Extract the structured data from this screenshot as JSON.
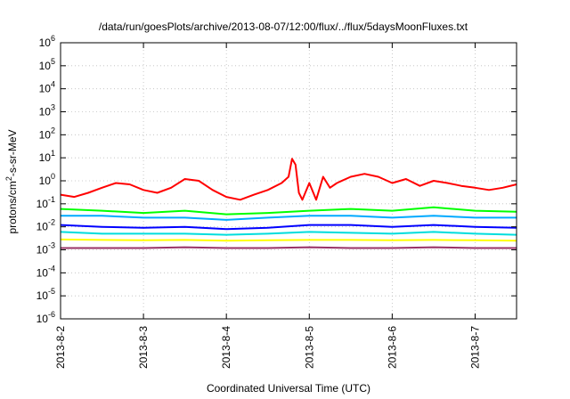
{
  "chart_data": {
    "type": "line",
    "title": "/data/run/goesPlots/archive/2013-08-07/12:00/flux/../flux/5daysMoonFluxes.txt",
    "xlabel": "Coordinated Universal Time (UTC)",
    "ylabel": {
      "base": "protons/cm",
      "sup": "2",
      "rest": "-s-sr-MeV"
    },
    "yscale": "log",
    "ylim": [
      1e-06,
      1000000.0
    ],
    "xlim": [
      "2013-08-02 00:00",
      "2013-08-07 12:00"
    ],
    "xticks": [
      "2013-8-2",
      "2013-8-3",
      "2013-8-4",
      "2013-8-5",
      "2013-8-6",
      "2013-8-7"
    ],
    "yticks": [
      {
        "base": "10",
        "exp": "-6",
        "value": 1e-06
      },
      {
        "base": "10",
        "exp": "-5",
        "value": 1e-05
      },
      {
        "base": "10",
        "exp": "-4",
        "value": 0.0001
      },
      {
        "base": "10",
        "exp": "-3",
        "value": 0.001
      },
      {
        "base": "10",
        "exp": "-2",
        "value": 0.01
      },
      {
        "base": "10",
        "exp": "-1",
        "value": 0.1
      },
      {
        "base": "10",
        "exp": "0",
        "value": 1.0
      },
      {
        "base": "10",
        "exp": "1",
        "value": 10.0
      },
      {
        "base": "10",
        "exp": "2",
        "value": 100.0
      },
      {
        "base": "10",
        "exp": "3",
        "value": 1000.0
      },
      {
        "base": "10",
        "exp": "4",
        "value": 10000.0
      },
      {
        "base": "10",
        "exp": "5",
        "value": 100000.0
      },
      {
        "base": "10",
        "exp": "6",
        "value": 1000000.0
      }
    ],
    "grid": true,
    "legend": "none",
    "series": [
      {
        "color": "#ff0000",
        "x": [
          "2013-08-02 00:00",
          "2013-08-02 04:00",
          "2013-08-02 08:00",
          "2013-08-02 12:00",
          "2013-08-02 16:00",
          "2013-08-02 20:00",
          "2013-08-03 00:00",
          "2013-08-03 04:00",
          "2013-08-03 08:00",
          "2013-08-03 12:00",
          "2013-08-03 16:00",
          "2013-08-03 20:00",
          "2013-08-04 00:00",
          "2013-08-04 04:00",
          "2013-08-04 08:00",
          "2013-08-04 12:00",
          "2013-08-04 16:00",
          "2013-08-04 18:00",
          "2013-08-04 19:00",
          "2013-08-04 20:00",
          "2013-08-04 21:00",
          "2013-08-04 22:00",
          "2013-08-05 00:00",
          "2013-08-05 02:00",
          "2013-08-05 04:00",
          "2013-08-05 06:00",
          "2013-08-05 08:00",
          "2013-08-05 12:00",
          "2013-08-05 16:00",
          "2013-08-05 20:00",
          "2013-08-06 00:00",
          "2013-08-06 04:00",
          "2013-08-06 08:00",
          "2013-08-06 12:00",
          "2013-08-06 16:00",
          "2013-08-06 20:00",
          "2013-08-07 00:00",
          "2013-08-07 04:00",
          "2013-08-07 08:00",
          "2013-08-07 12:00"
        ],
        "values": [
          0.25,
          0.2,
          0.3,
          0.5,
          0.8,
          0.7,
          0.4,
          0.3,
          0.5,
          1.2,
          1.0,
          0.4,
          0.2,
          0.15,
          0.25,
          0.4,
          0.8,
          1.5,
          9.0,
          5.0,
          0.3,
          0.15,
          0.8,
          0.15,
          1.5,
          0.5,
          0.8,
          1.5,
          2.0,
          1.5,
          0.8,
          1.2,
          0.6,
          1.0,
          0.8,
          0.6,
          0.5,
          0.4,
          0.5,
          0.7
        ]
      },
      {
        "color": "#00ff00",
        "x": [
          "2013-08-02 00:00",
          "2013-08-02 12:00",
          "2013-08-03 00:00",
          "2013-08-03 12:00",
          "2013-08-04 00:00",
          "2013-08-04 12:00",
          "2013-08-05 00:00",
          "2013-08-05 12:00",
          "2013-08-06 00:00",
          "2013-08-06 12:00",
          "2013-08-07 00:00",
          "2013-08-07 12:00"
        ],
        "values": [
          0.06,
          0.05,
          0.04,
          0.05,
          0.035,
          0.04,
          0.05,
          0.06,
          0.05,
          0.07,
          0.05,
          0.045
        ]
      },
      {
        "color": "#00aaff",
        "x": [
          "2013-08-02 00:00",
          "2013-08-02 12:00",
          "2013-08-03 00:00",
          "2013-08-03 12:00",
          "2013-08-04 00:00",
          "2013-08-04 12:00",
          "2013-08-05 00:00",
          "2013-08-05 12:00",
          "2013-08-06 00:00",
          "2013-08-06 12:00",
          "2013-08-07 00:00",
          "2013-08-07 12:00"
        ],
        "values": [
          0.03,
          0.03,
          0.025,
          0.025,
          0.02,
          0.025,
          0.03,
          0.03,
          0.025,
          0.03,
          0.025,
          0.025
        ]
      },
      {
        "color": "#0000ff",
        "x": [
          "2013-08-02 00:00",
          "2013-08-02 12:00",
          "2013-08-03 00:00",
          "2013-08-03 12:00",
          "2013-08-04 00:00",
          "2013-08-04 12:00",
          "2013-08-05 00:00",
          "2013-08-05 12:00",
          "2013-08-06 00:00",
          "2013-08-06 12:00",
          "2013-08-07 00:00",
          "2013-08-07 12:00"
        ],
        "values": [
          0.012,
          0.01,
          0.009,
          0.01,
          0.008,
          0.009,
          0.012,
          0.012,
          0.01,
          0.012,
          0.01,
          0.009
        ]
      },
      {
        "color": "#00dddd",
        "x": [
          "2013-08-02 00:00",
          "2013-08-02 12:00",
          "2013-08-03 00:00",
          "2013-08-03 12:00",
          "2013-08-04 00:00",
          "2013-08-04 12:00",
          "2013-08-05 00:00",
          "2013-08-05 12:00",
          "2013-08-06 00:00",
          "2013-08-06 12:00",
          "2013-08-07 00:00",
          "2013-08-07 12:00"
        ],
        "values": [
          0.006,
          0.005,
          0.005,
          0.005,
          0.0045,
          0.005,
          0.006,
          0.0055,
          0.005,
          0.006,
          0.005,
          0.0045
        ]
      },
      {
        "color": "#ffff00",
        "x": [
          "2013-08-02 00:00",
          "2013-08-02 12:00",
          "2013-08-03 00:00",
          "2013-08-03 12:00",
          "2013-08-04 00:00",
          "2013-08-04 12:00",
          "2013-08-05 00:00",
          "2013-08-05 12:00",
          "2013-08-06 00:00",
          "2013-08-06 12:00",
          "2013-08-07 00:00",
          "2013-08-07 12:00"
        ],
        "values": [
          0.0028,
          0.0027,
          0.0026,
          0.0027,
          0.0025,
          0.0026,
          0.0027,
          0.0027,
          0.0026,
          0.0027,
          0.0026,
          0.0025
        ]
      },
      {
        "color": "#993366",
        "x": [
          "2013-08-02 00:00",
          "2013-08-02 12:00",
          "2013-08-03 00:00",
          "2013-08-03 12:00",
          "2013-08-04 00:00",
          "2013-08-04 12:00",
          "2013-08-05 00:00",
          "2013-08-05 12:00",
          "2013-08-06 00:00",
          "2013-08-06 12:00",
          "2013-08-07 00:00",
          "2013-08-07 12:00"
        ],
        "values": [
          0.0012,
          0.0012,
          0.0012,
          0.0013,
          0.0012,
          0.0012,
          0.0013,
          0.0012,
          0.0012,
          0.0013,
          0.0012,
          0.0012
        ]
      }
    ]
  }
}
